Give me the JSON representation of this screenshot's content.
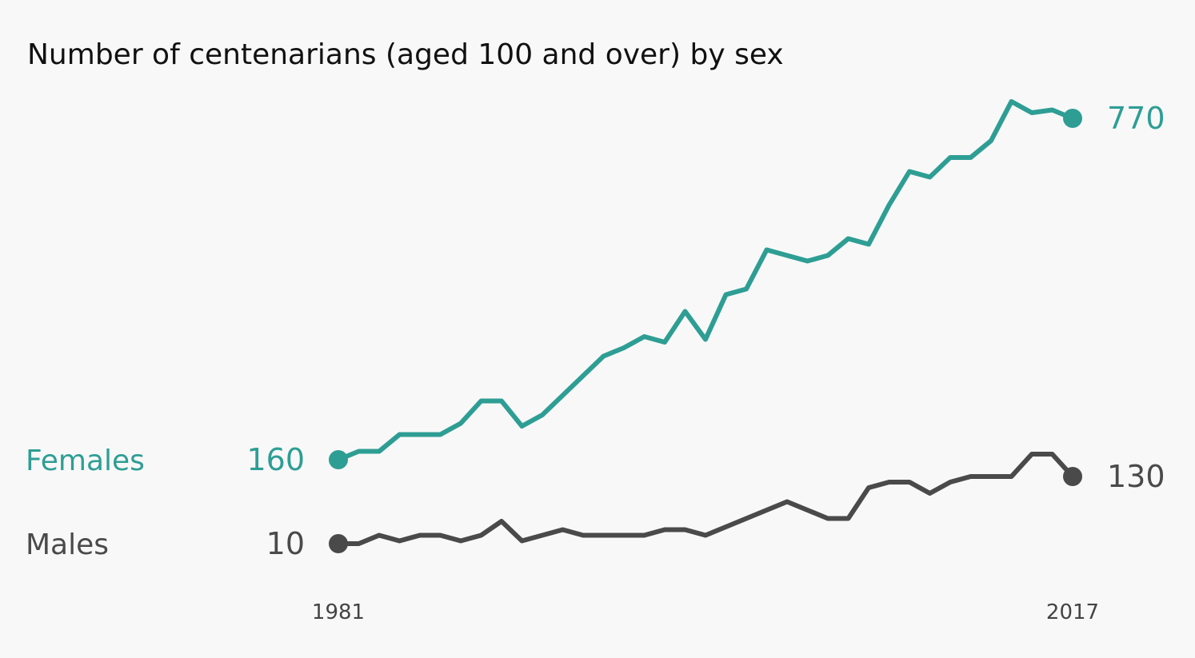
{
  "chart_data": {
    "type": "line",
    "title": "Number of centenarians (aged 100 and over) by sex",
    "xlabel": "",
    "ylabel": "",
    "x": [
      1981,
      1982,
      1983,
      1984,
      1985,
      1986,
      1987,
      1988,
      1989,
      1990,
      1991,
      1992,
      1993,
      1994,
      1995,
      1996,
      1997,
      1998,
      1999,
      2000,
      2001,
      2002,
      2003,
      2004,
      2005,
      2006,
      2007,
      2008,
      2009,
      2010,
      2011,
      2012,
      2013,
      2014,
      2015,
      2016,
      2017
    ],
    "x_ticks": [
      "1981",
      "2017"
    ],
    "ylim": [
      10,
      770
    ],
    "series": [
      {
        "name": "Females",
        "color": "#2e9e94",
        "values": [
          160,
          175,
          175,
          205,
          205,
          205,
          225,
          265,
          265,
          220,
          240,
          275,
          310,
          345,
          360,
          380,
          370,
          425,
          375,
          455,
          465,
          535,
          525,
          515,
          525,
          555,
          545,
          615,
          675,
          665,
          700,
          700,
          730,
          800,
          780,
          785,
          770
        ],
        "start_label": "160",
        "end_label": "770"
      },
      {
        "name": "Males",
        "color": "#4a4a4a",
        "values": [
          10,
          10,
          25,
          15,
          25,
          25,
          15,
          25,
          50,
          15,
          25,
          35,
          25,
          25,
          25,
          25,
          35,
          35,
          25,
          40,
          55,
          70,
          85,
          70,
          55,
          55,
          110,
          120,
          120,
          100,
          120,
          130,
          130,
          130,
          170,
          170,
          130
        ],
        "start_label": "10",
        "end_label": "130"
      }
    ]
  }
}
